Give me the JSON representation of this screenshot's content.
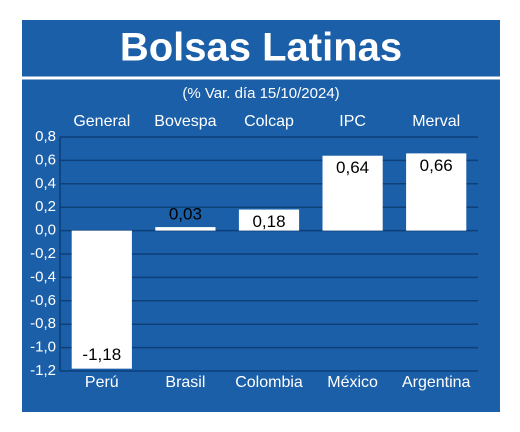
{
  "chart_data": {
    "type": "bar",
    "title": "Bolsas Latinas",
    "subtitle": "(% Var. día 15/10/2024)",
    "indices": [
      "General",
      "Bovespa",
      "Colcap",
      "IPC",
      "Merval"
    ],
    "categories": [
      "Perú",
      "Brasil",
      "Colombia",
      "México",
      "Argentina"
    ],
    "values": [
      -1.18,
      0.03,
      0.18,
      0.64,
      0.66
    ],
    "value_labels": [
      "-1,18",
      "0,03",
      "0,18",
      "0,64",
      "0,66"
    ],
    "color": "#ffffff",
    "ylim": [
      -1.2,
      0.8
    ],
    "yticks": [
      {
        "value": 0.8,
        "label": "0,8"
      },
      {
        "value": 0.6,
        "label": "0,6"
      },
      {
        "value": 0.4,
        "label": "0,4"
      },
      {
        "value": 0.2,
        "label": "0,2"
      },
      {
        "value": 0,
        "label": "0,0"
      },
      {
        "value": -0.2,
        "label": "-0,2"
      },
      {
        "value": -0.4,
        "label": "-0,4"
      },
      {
        "value": -0.6,
        "label": "-0,6"
      },
      {
        "value": -0.8,
        "label": "-0,8"
      },
      {
        "value": -1.0,
        "label": "-1,0"
      },
      {
        "value": -1.2,
        "label": "-1,2"
      }
    ],
    "grid": true
  }
}
